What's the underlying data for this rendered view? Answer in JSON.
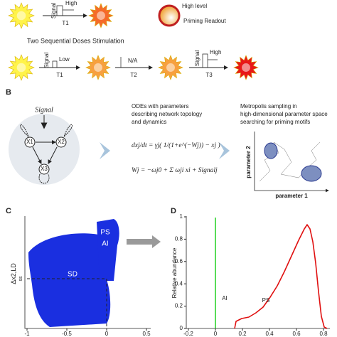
{
  "panel_a": {
    "first": {
      "signal": "Signal",
      "level": "High",
      "time": "T1"
    },
    "legend": {
      "high": "High level",
      "readout": "Priming Readout"
    },
    "title": "Two Sequential Doses Stimulation",
    "doses": [
      {
        "signal": "Signal",
        "level": "Low",
        "time": "T1"
      },
      {
        "level": "N/A",
        "time": "T2"
      },
      {
        "signal": "Signal",
        "level": "High",
        "time": "T3"
      }
    ]
  },
  "panel_b": {
    "label": "B",
    "network": {
      "signal": "Signal",
      "nodes": [
        "X1",
        "X2",
        "X3"
      ]
    },
    "ode": {
      "caption": [
        "ODEs with parameters",
        "describing network topology",
        "and dynamics"
      ],
      "eq1": "dxj/dt = γj( 1/(1+e^(−Wj)) − xj )",
      "eq2": "Wj = −ωj0 + Σ ωji xi + Signalj"
    },
    "sampling": {
      "caption": [
        "Metropolis sampling in",
        "high-dimensional parameter space",
        "searching for priming motifs"
      ],
      "y_axis": "parameter 2",
      "x_axis": "parameter 1"
    }
  },
  "panel_c": {
    "label": "C",
    "y_axis": "Δx2,LD",
    "y_axis_sub": "ss",
    "xticks": [
      "-1",
      "-0.5",
      "0",
      "0.5"
    ],
    "regions": [
      "PS",
      "AI",
      "SD"
    ]
  },
  "panel_d": {
    "label": "D",
    "y_axis": "Relative abundance",
    "yticks": [
      "0",
      "0.2",
      "0.4",
      "0.6",
      "0.8",
      "1"
    ],
    "xticks": [
      "-0.2",
      "0",
      "0.2",
      "0.4",
      "0.6",
      "0.8"
    ],
    "regions": [
      "AI",
      "PS"
    ]
  }
}
